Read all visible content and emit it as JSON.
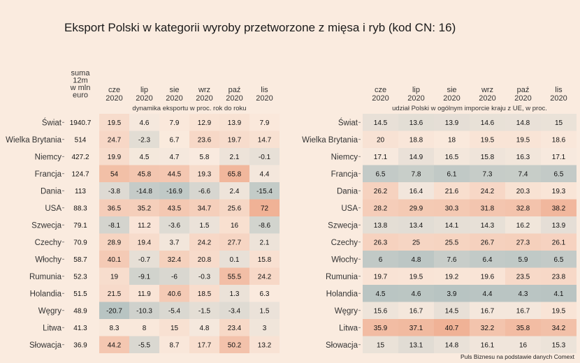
{
  "title": "Eksport Polski w kategorii wyroby przetworzone z mięsa i ryb (kod CN: 16)",
  "source": "Puls Biznesu na podstawie danych Comext",
  "chart_data": [
    {
      "type": "heatmap",
      "rows": [
        "Świat",
        "Wielka Brytania",
        "Niemcy",
        "Francja",
        "Dania",
        "USA",
        "Szwecja",
        "Czechy",
        "Włochy",
        "Rumunia",
        "Holandia",
        "Węgry",
        "Litwa",
        "Słowacja"
      ],
      "sum_header": [
        "suma",
        "12m",
        "w mln",
        "euro"
      ],
      "sum_values": [
        "1940.7",
        "514",
        "427.2",
        "124.7",
        "113",
        "88.3",
        "79.1",
        "70.9",
        "58.7",
        "52.3",
        "51.5",
        "48.9",
        "41.3",
        "36.9"
      ],
      "columns": [
        [
          "cze",
          "2020"
        ],
        [
          "lip",
          "2020"
        ],
        [
          "sie",
          "2020"
        ],
        [
          "wrz",
          "2020"
        ],
        [
          "paź",
          "2020"
        ],
        [
          "lis",
          "2020"
        ]
      ],
      "subtitle": "dynamika eksportu w proc. rok do roku",
      "values": [
        [
          "19.5",
          "4.6",
          "7.9",
          "12.9",
          "13.9",
          "7.9"
        ],
        [
          "24.7",
          "-2.3",
          "6.7",
          "23.6",
          "19.7",
          "14.7"
        ],
        [
          "19.9",
          "4.5",
          "4.7",
          "5.8",
          "2.1",
          "-0.1"
        ],
        [
          "54",
          "45.8",
          "44.5",
          "19.3",
          "65.8",
          "4.4"
        ],
        [
          "-3.8",
          "-14.8",
          "-16.9",
          "-6.6",
          "2.4",
          "-15.4"
        ],
        [
          "36.5",
          "35.2",
          "43.5",
          "34.7",
          "25.6",
          "72"
        ],
        [
          "-8.1",
          "11.2",
          "-3.6",
          "1.5",
          "16",
          "-8.6"
        ],
        [
          "28.9",
          "19.4",
          "3.7",
          "24.2",
          "27.7",
          "2.1"
        ],
        [
          "40.1",
          "-0.7",
          "32.4",
          "20.8",
          "0.1",
          "15.8"
        ],
        [
          "19",
          "-9.1",
          "-6",
          "-0.3",
          "55.5",
          "24.2"
        ],
        [
          "21.5",
          "11.9",
          "40.6",
          "18.5",
          "1.3",
          "6.3"
        ],
        [
          "-20.7",
          "-10.3",
          "-5.4",
          "-1.5",
          "-3.4",
          "1.5"
        ],
        [
          "8.3",
          "8",
          "15",
          "4.8",
          "23.4",
          "3"
        ],
        [
          "44.2",
          "-5.5",
          "8.7",
          "17.7",
          "50.2",
          "13.2"
        ]
      ]
    },
    {
      "type": "heatmap",
      "rows": [
        "Świat",
        "Wielka Brytania",
        "Niemcy",
        "Francja",
        "Dania",
        "USA",
        "Szwecja",
        "Czechy",
        "Włochy",
        "Rumunia",
        "Holandia",
        "Węgry",
        "Litwa",
        "Słowacja"
      ],
      "columns": [
        [
          "cze",
          "2020"
        ],
        [
          "lip",
          "2020"
        ],
        [
          "sie",
          "2020"
        ],
        [
          "wrz",
          "2020"
        ],
        [
          "paź",
          "2020"
        ],
        [
          "lis",
          "2020"
        ]
      ],
      "subtitle": "udział Polski w ogólnym imporcie kraju z UE, w proc.",
      "values": [
        [
          "14.5",
          "13.6",
          "13.9",
          "14.6",
          "14.8",
          "15"
        ],
        [
          "20",
          "18.8",
          "18",
          "19.5",
          "19.5",
          "18.6"
        ],
        [
          "17.1",
          "14.9",
          "16.5",
          "15.8",
          "16.3",
          "17.1"
        ],
        [
          "6.5",
          "7.8",
          "6.1",
          "7.3",
          "7.4",
          "6.5"
        ],
        [
          "26.2",
          "16.4",
          "21.6",
          "24.2",
          "20.3",
          "19.3"
        ],
        [
          "28.2",
          "29.9",
          "30.3",
          "31.8",
          "32.8",
          "38.2"
        ],
        [
          "13.8",
          "13.4",
          "14.1",
          "14.3",
          "16.2",
          "13.9"
        ],
        [
          "26.3",
          "25",
          "25.5",
          "26.7",
          "27.3",
          "26.1"
        ],
        [
          "6",
          "4.8",
          "7.6",
          "6.4",
          "5.9",
          "6.5"
        ],
        [
          "19.7",
          "19.5",
          "19.2",
          "19.6",
          "23.5",
          "23.8"
        ],
        [
          "4.5",
          "4.6",
          "3.9",
          "4.4",
          "4.3",
          "4.1"
        ],
        [
          "15.6",
          "16.7",
          "14.5",
          "16.7",
          "16.7",
          "19.5"
        ],
        [
          "35.9",
          "37.1",
          "40.7",
          "32.2",
          "35.8",
          "34.2"
        ],
        [
          "15",
          "13.1",
          "14.8",
          "16.1",
          "16",
          "15.3"
        ]
      ]
    }
  ]
}
